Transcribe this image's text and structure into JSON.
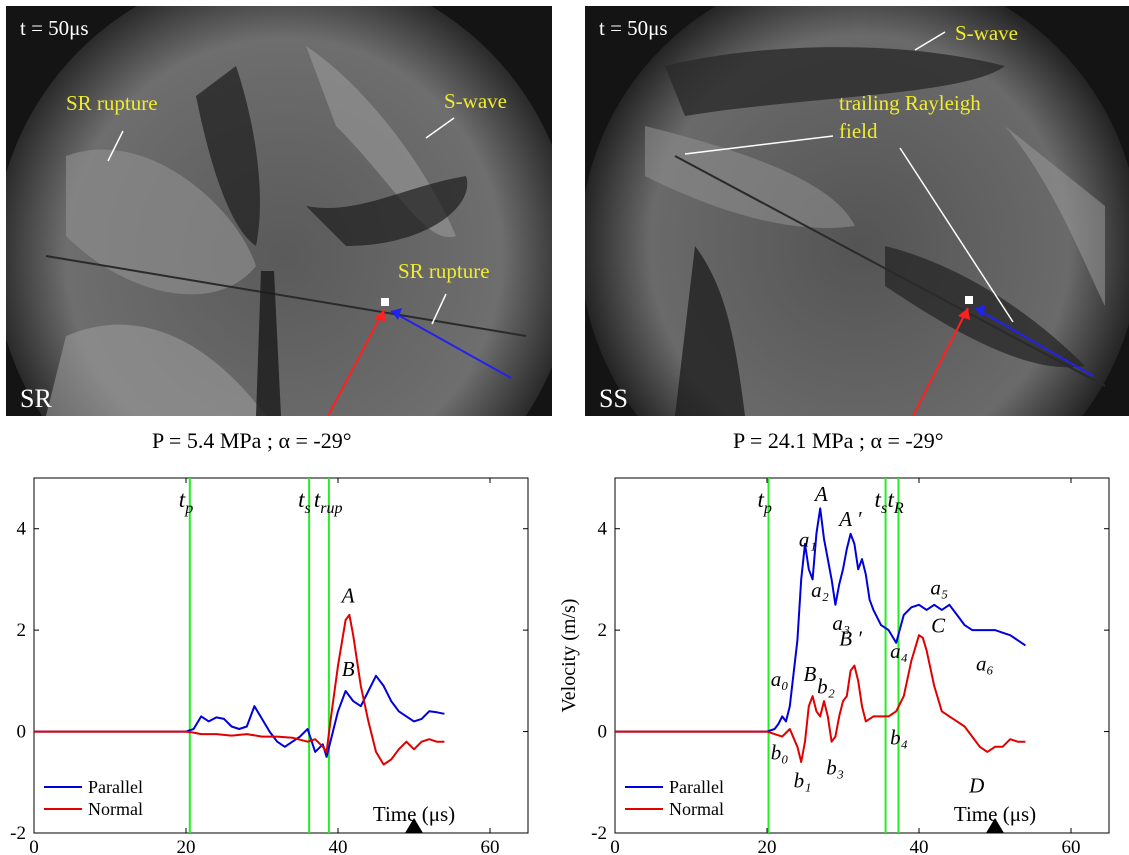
{
  "photos": [
    {
      "time_label": "t = 50μs",
      "corner_label": "SR",
      "annotations": [
        "SR rupture",
        "S-wave",
        "SR rupture"
      ]
    },
    {
      "time_label": "t = 50μs",
      "corner_label": "SS",
      "annotations": [
        "S-wave",
        "trailing Rayleigh",
        "field"
      ]
    }
  ],
  "conditions": [
    "P =  5.4 MPa ; α = -29°",
    "P =  24.1 MPa ; α = -29°"
  ],
  "colors": {
    "parallel": "#0000dd",
    "normal": "#e00000",
    "marker": "#22ee22",
    "annotation": "#f0ec2c"
  },
  "chart_data": [
    {
      "type": "line",
      "xlim": [
        0,
        65
      ],
      "ylim": [
        -2,
        5
      ],
      "xticks": [
        0,
        20,
        40,
        60
      ],
      "yticks": [
        -2,
        0,
        2,
        4
      ],
      "xlabel": "Time (μs)",
      "ylabel": "",
      "legend": "bottom-left",
      "markers": [
        {
          "x": 20.5,
          "label": "t",
          "sub": "p"
        },
        {
          "x": 36.2,
          "label": "t",
          "sub": "s"
        },
        {
          "x": 38.8,
          "label": "t",
          "sub": "rup"
        }
      ],
      "frame_marker_x": 50,
      "series": [
        {
          "name": "Parallel",
          "color_key": "parallel",
          "points": [
            [
              0,
              0
            ],
            [
              10,
              0
            ],
            [
              20,
              0
            ],
            [
              21,
              0.05
            ],
            [
              22,
              0.3
            ],
            [
              23,
              0.2
            ],
            [
              24,
              0.28
            ],
            [
              25,
              0.25
            ],
            [
              26,
              0.1
            ],
            [
              27,
              0.05
            ],
            [
              28,
              0.1
            ],
            [
              29,
              0.5
            ],
            [
              30,
              0.25
            ],
            [
              31,
              0
            ],
            [
              32,
              -0.2
            ],
            [
              33,
              -0.3
            ],
            [
              34,
              -0.2
            ],
            [
              35,
              -0.1
            ],
            [
              36,
              0.05
            ],
            [
              37,
              -0.4
            ],
            [
              38,
              -0.25
            ],
            [
              38.5,
              -0.5
            ],
            [
              39,
              -0.2
            ],
            [
              40,
              0.4
            ],
            [
              41,
              0.8
            ],
            [
              42,
              0.6
            ],
            [
              43,
              0.5
            ],
            [
              44,
              0.8
            ],
            [
              45,
              1.1
            ],
            [
              46,
              0.9
            ],
            [
              47,
              0.6
            ],
            [
              48,
              0.4
            ],
            [
              49,
              0.3
            ],
            [
              50,
              0.2
            ],
            [
              51,
              0.25
            ],
            [
              52,
              0.4
            ],
            [
              53,
              0.38
            ],
            [
              54,
              0.35
            ]
          ]
        },
        {
          "name": "Normal",
          "color_key": "normal",
          "points": [
            [
              0,
              0
            ],
            [
              10,
              0
            ],
            [
              20,
              0
            ],
            [
              21,
              -0.02
            ],
            [
              22,
              -0.05
            ],
            [
              24,
              -0.05
            ],
            [
              26,
              -0.08
            ],
            [
              28,
              -0.05
            ],
            [
              30,
              -0.1
            ],
            [
              32,
              -0.1
            ],
            [
              34,
              -0.12
            ],
            [
              36,
              -0.2
            ],
            [
              37,
              -0.15
            ],
            [
              38,
              -0.3
            ],
            [
              38.5,
              -0.4
            ],
            [
              39,
              0.2
            ],
            [
              40,
              1.3
            ],
            [
              41,
              2.2
            ],
            [
              41.5,
              2.3
            ],
            [
              42,
              1.9
            ],
            [
              43,
              0.9
            ],
            [
              44,
              0.2
            ],
            [
              45,
              -0.4
            ],
            [
              46,
              -0.65
            ],
            [
              47,
              -0.55
            ],
            [
              48,
              -0.35
            ],
            [
              49,
              -0.2
            ],
            [
              50,
              -0.35
            ],
            [
              51,
              -0.2
            ],
            [
              52,
              -0.15
            ],
            [
              53,
              -0.2
            ],
            [
              54,
              -0.2
            ]
          ]
        }
      ],
      "labels": [
        {
          "text": "A",
          "x": 40.5,
          "y": 2.55
        },
        {
          "text": "B",
          "x": 40.5,
          "y": 1.1
        }
      ]
    },
    {
      "type": "line",
      "xlim": [
        0,
        65
      ],
      "ylim": [
        -2,
        5
      ],
      "xticks": [
        0,
        20,
        40,
        60
      ],
      "yticks": [
        -2,
        0,
        2,
        4
      ],
      "xlabel": "Time (μs)",
      "ylabel": "Velocity (m/s)",
      "legend": "bottom-left",
      "markers": [
        {
          "x": 20.2,
          "label": "t",
          "sub": "p"
        },
        {
          "x": 35.6,
          "label": "t",
          "sub": "s"
        },
        {
          "x": 37.3,
          "label": "t",
          "sub": "R"
        }
      ],
      "frame_marker_x": 50,
      "series": [
        {
          "name": "Parallel",
          "color_key": "parallel",
          "points": [
            [
              0,
              0
            ],
            [
              10,
              0
            ],
            [
              20,
              0
            ],
            [
              21,
              0.05
            ],
            [
              21.5,
              0.15
            ],
            [
              22,
              0.3
            ],
            [
              22.5,
              0.2
            ],
            [
              23,
              0.5
            ],
            [
              24,
              1.8
            ],
            [
              24.5,
              3.0
            ],
            [
              25,
              3.7
            ],
            [
              25.5,
              3.2
            ],
            [
              26,
              3.0
            ],
            [
              26.5,
              3.9
            ],
            [
              27,
              4.4
            ],
            [
              27.5,
              3.8
            ],
            [
              28,
              3.4
            ],
            [
              28.5,
              3.0
            ],
            [
              29,
              2.5
            ],
            [
              29.5,
              2.9
            ],
            [
              30,
              3.2
            ],
            [
              30.5,
              3.6
            ],
            [
              31,
              3.9
            ],
            [
              31.5,
              3.7
            ],
            [
              32,
              3.2
            ],
            [
              32.5,
              3.4
            ],
            [
              33,
              3.1
            ],
            [
              33.5,
              2.6
            ],
            [
              34,
              2.4
            ],
            [
              35,
              2.1
            ],
            [
              36,
              2.0
            ],
            [
              37,
              1.75
            ],
            [
              38,
              2.3
            ],
            [
              39,
              2.45
            ],
            [
              40,
              2.5
            ],
            [
              41,
              2.4
            ],
            [
              42,
              2.5
            ],
            [
              43,
              2.4
            ],
            [
              44,
              2.5
            ],
            [
              45,
              2.3
            ],
            [
              46,
              2.1
            ],
            [
              47,
              2.0
            ],
            [
              48,
              2.0
            ],
            [
              50,
              2.0
            ],
            [
              51,
              1.95
            ],
            [
              52,
              1.9
            ],
            [
              53,
              1.8
            ],
            [
              54,
              1.7
            ]
          ]
        },
        {
          "name": "Normal",
          "color_key": "normal",
          "points": [
            [
              0,
              0
            ],
            [
              10,
              0
            ],
            [
              20,
              0
            ],
            [
              21,
              -0.05
            ],
            [
              22,
              -0.1
            ],
            [
              23,
              0.05
            ],
            [
              24,
              -0.3
            ],
            [
              24.5,
              -0.6
            ],
            [
              25,
              -0.2
            ],
            [
              25.5,
              0.5
            ],
            [
              26,
              0.7
            ],
            [
              26.5,
              0.4
            ],
            [
              27,
              0.3
            ],
            [
              27.5,
              0.6
            ],
            [
              28,
              0.3
            ],
            [
              28.5,
              -0.2
            ],
            [
              29,
              -0.1
            ],
            [
              29.5,
              0.3
            ],
            [
              30,
              0.6
            ],
            [
              30.5,
              0.7
            ],
            [
              31,
              1.2
            ],
            [
              31.5,
              1.3
            ],
            [
              32,
              1.0
            ],
            [
              32.5,
              0.5
            ],
            [
              33,
              0.2
            ],
            [
              34,
              0.3
            ],
            [
              35,
              0.3
            ],
            [
              36,
              0.3
            ],
            [
              37,
              0.4
            ],
            [
              38,
              0.7
            ],
            [
              39,
              1.4
            ],
            [
              40,
              1.9
            ],
            [
              40.5,
              1.85
            ],
            [
              41,
              1.6
            ],
            [
              42,
              0.9
            ],
            [
              43,
              0.4
            ],
            [
              44,
              0.3
            ],
            [
              45,
              0.2
            ],
            [
              46,
              0.1
            ],
            [
              47,
              -0.1
            ],
            [
              48,
              -0.3
            ],
            [
              49,
              -0.4
            ],
            [
              50,
              -0.3
            ],
            [
              51,
              -0.3
            ],
            [
              52,
              -0.15
            ],
            [
              53,
              -0.2
            ],
            [
              54,
              -0.2
            ]
          ]
        }
      ],
      "labels": [
        {
          "text": "A",
          "x": 26.3,
          "y": 4.55
        },
        {
          "text": "A ′",
          "x": 29.5,
          "y": 4.05
        },
        {
          "text": "a₁",
          "x": 24.2,
          "y": 3.65
        },
        {
          "text": "a₂",
          "x": 25.8,
          "y": 2.65
        },
        {
          "text": "a₃",
          "x": 28.6,
          "y": 2.0
        },
        {
          "text": "a₄",
          "x": 36.2,
          "y": 1.45
        },
        {
          "text": "a₅",
          "x": 41.5,
          "y": 2.7
        },
        {
          "text": "a₆",
          "x": 47.5,
          "y": 1.2
        },
        {
          "text": "a₀",
          "x": 20.5,
          "y": 0.9
        },
        {
          "text": "B",
          "x": 24.8,
          "y": 1.0
        },
        {
          "text": "B ′",
          "x": 29.5,
          "y": 1.7
        },
        {
          "text": "b₂",
          "x": 26.6,
          "y": 0.75
        },
        {
          "text": "C",
          "x": 41.6,
          "y": 1.95
        },
        {
          "text": "b₀",
          "x": 20.5,
          "y": -0.55
        },
        {
          "text": "b₁",
          "x": 23.5,
          "y": -1.1
        },
        {
          "text": "b₃",
          "x": 27.8,
          "y": -0.85
        },
        {
          "text": "b₄",
          "x": 36.2,
          "y": -0.25
        },
        {
          "text": "D",
          "x": 46.6,
          "y": -1.2
        }
      ]
    }
  ]
}
